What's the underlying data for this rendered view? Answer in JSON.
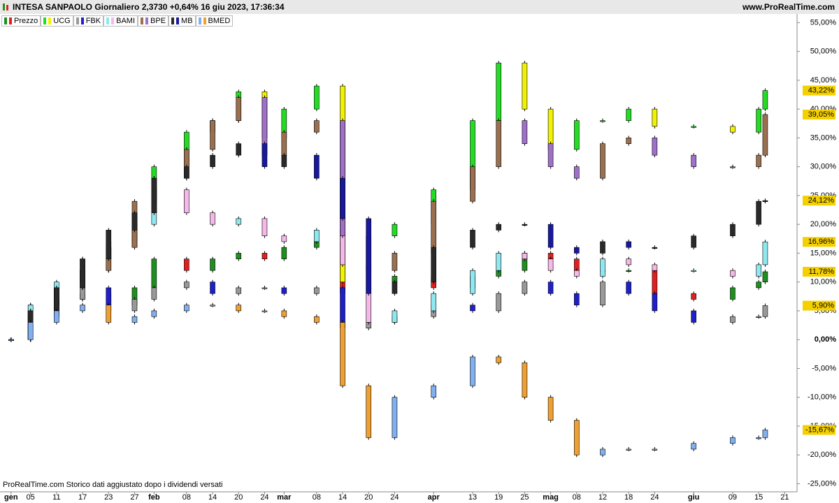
{
  "chart_data": {
    "type": "candlestick",
    "title": "INTESA SANPAOLO Giornaliero 2,3730 +0,64% 16 giu 2023, 17:36:34",
    "source": "www.ProRealTime.com",
    "footer": "ProRealTime.com  Storico dati aggiustato dopo i dividendi versati",
    "x": [
      0,
      3,
      7,
      11,
      15,
      19,
      22,
      27,
      31,
      35,
      39,
      42,
      47,
      51,
      55,
      59,
      65,
      71,
      75,
      79,
      83,
      87,
      91,
      95,
      99,
      105,
      111,
      115,
      116
    ],
    "xlim": [
      -1.7,
      120.9
    ],
    "xticks": [
      {
        "value": 0,
        "label": "gen"
      },
      {
        "value": 3,
        "label": "05"
      },
      {
        "value": 7,
        "label": "11"
      },
      {
        "value": 11,
        "label": "17"
      },
      {
        "value": 15,
        "label": "23"
      },
      {
        "value": 19,
        "label": "27"
      },
      {
        "value": 22,
        "label": "feb"
      },
      {
        "value": 27,
        "label": "08"
      },
      {
        "value": 31,
        "label": "14"
      },
      {
        "value": 35,
        "label": "20"
      },
      {
        "value": 39,
        "label": "24"
      },
      {
        "value": 42,
        "label": "mar"
      },
      {
        "value": 47,
        "label": "08"
      },
      {
        "value": 51,
        "label": "14"
      },
      {
        "value": 55,
        "label": "20"
      },
      {
        "value": 59,
        "label": "24"
      },
      {
        "value": 65,
        "label": "apr"
      },
      {
        "value": 71,
        "label": "13"
      },
      {
        "value": 75,
        "label": "19"
      },
      {
        "value": 79,
        "label": "25"
      },
      {
        "value": 83,
        "label": "mag"
      },
      {
        "value": 87,
        "label": "08"
      },
      {
        "value": 91,
        "label": "12"
      },
      {
        "value": 95,
        "label": "18"
      },
      {
        "value": 99,
        "label": "24"
      },
      {
        "value": 105,
        "label": "giu"
      },
      {
        "value": 111,
        "label": "09"
      },
      {
        "value": 115,
        "label": "15"
      },
      {
        "value": 119,
        "label": "21"
      }
    ],
    "month_ticks": [
      "gen",
      "feb",
      "mar",
      "apr",
      "mag",
      "giu"
    ],
    "ylim": [
      -26.4,
      56.5
    ],
    "yticks": [
      {
        "value": 55,
        "label": "55,00%"
      },
      {
        "value": 50,
        "label": "50,00%"
      },
      {
        "value": 45,
        "label": "45,00%"
      },
      {
        "value": 40,
        "label": "40,00%"
      },
      {
        "value": 35,
        "label": "35,00%"
      },
      {
        "value": 30,
        "label": "30,00%"
      },
      {
        "value": 25,
        "label": "25,00%"
      },
      {
        "value": 20,
        "label": "20,00%"
      },
      {
        "value": 15,
        "label": "15,00%"
      },
      {
        "value": 10,
        "label": "10,00%"
      },
      {
        "value": 5,
        "label": "5,00%"
      },
      {
        "value": 0,
        "label": "0,00%"
      },
      {
        "value": -5,
        "label": "-5,00%"
      },
      {
        "value": -10,
        "label": "-10,00%"
      },
      {
        "value": -15,
        "label": "-15,00%"
      },
      {
        "value": -20,
        "label": "-20,00%"
      },
      {
        "value": -25,
        "label": "-25,00%"
      }
    ],
    "series": [
      {
        "name": "Prezzo",
        "colors": [
          "#1f8f1f",
          "#e02020"
        ],
        "last_label": "11,78%",
        "values": [
          0,
          4,
          7,
          8,
          6,
          9,
          14,
          12,
          14,
          15,
          14,
          16,
          17,
          8,
          10,
          11,
          9,
          11,
          12,
          15,
          14,
          12,
          12,
          12,
          8,
          7,
          9,
          10,
          11.78
        ]
      },
      {
        "name": "UCG",
        "colors": [
          "#22dd22",
          "#f2f200"
        ],
        "last_label": "43,22%",
        "values": [
          0,
          6,
          9,
          12,
          17,
          22,
          30,
          36,
          38,
          43,
          35,
          40,
          44,
          10,
          18,
          20,
          26,
          38,
          48,
          40,
          33,
          38,
          38,
          40,
          37,
          37,
          36,
          40,
          43.22
        ]
      },
      {
        "name": "FBK",
        "colors": [
          "#999999",
          "#2020c8"
        ],
        "last_label": "5,90%",
        "values": [
          0,
          5,
          7,
          9,
          5,
          7,
          9,
          10,
          8,
          9,
          9,
          8,
          9,
          2,
          3,
          4,
          6,
          5,
          8,
          10,
          8,
          6,
          10,
          8,
          5,
          3,
          4,
          4,
          5.9
        ]
      },
      {
        "name": "BAMI",
        "colors": [
          "#8ee8f0",
          "#f5b8e8"
        ],
        "last_label": "16,96%",
        "values": [
          0,
          6,
          10,
          14,
          16,
          20,
          26,
          22,
          20,
          21,
          18,
          17,
          19,
          13,
          3,
          5,
          8,
          12,
          15,
          14,
          12,
          11,
          14,
          13,
          12,
          12,
          11,
          13,
          16.96
        ]
      },
      {
        "name": "BPE",
        "colors": [
          "#9a7050",
          "#a070c8"
        ],
        "last_label": "39,05%",
        "values": [
          0,
          5,
          9,
          12,
          16,
          24,
          28,
          33,
          38,
          42,
          32,
          36,
          38,
          18,
          12,
          15,
          24,
          30,
          38,
          34,
          30,
          28,
          34,
          35,
          32,
          30,
          30,
          32,
          39.05
        ]
      },
      {
        "name": "MB",
        "colors": [
          "#2a2a2a",
          "#1818a0"
        ],
        "last_label": "24,12%",
        "values": [
          0,
          5,
          9,
          14,
          19,
          22,
          28,
          30,
          32,
          34,
          30,
          32,
          28,
          21,
          8,
          10,
          16,
          19,
          20,
          20,
          16,
          15,
          17,
          16,
          16,
          18,
          20,
          24,
          24.12
        ]
      },
      {
        "name": "BMED",
        "colors": [
          "#80b0f0",
          "#f0a030"
        ],
        "last_label": "-15,67%",
        "values": [
          0,
          3,
          5,
          6,
          3,
          4,
          5,
          6,
          6,
          5,
          5,
          4,
          3,
          -8,
          -17,
          -10,
          -8,
          -3,
          -4,
          -10,
          -14,
          -20,
          -19,
          -19,
          -19,
          -18,
          -17,
          -17,
          -15.67
        ]
      }
    ]
  }
}
